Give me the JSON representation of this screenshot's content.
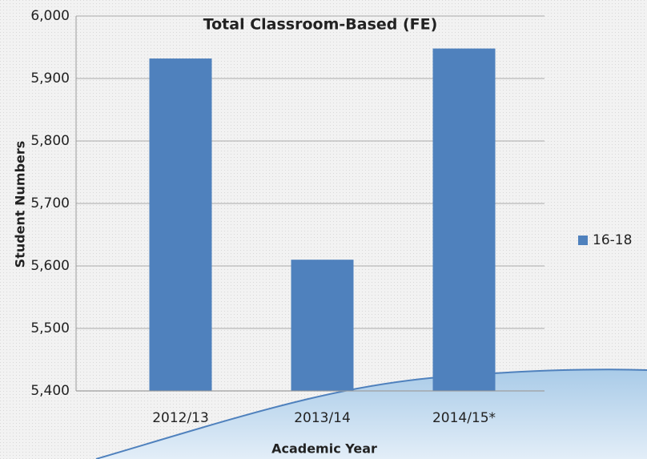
{
  "chart_data": {
    "type": "bar",
    "title": "Total Classroom-Based (FE)",
    "categories": [
      "2012/13",
      "2013/14",
      "2014/15*"
    ],
    "series": [
      {
        "name": "16-18",
        "color": "#4f81bd",
        "values": [
          5932,
          5610,
          5948
        ]
      }
    ],
    "xlabel": "Academic Year",
    "ylabel": "Student Numbers",
    "ylim": [
      5400,
      6000
    ],
    "yticks": [
      {
        "value": 5400,
        "label": "5,400"
      },
      {
        "value": 5500,
        "label": "5,500"
      },
      {
        "value": 5600,
        "label": "5,600"
      },
      {
        "value": 5700,
        "label": "5,700"
      },
      {
        "value": 5800,
        "label": "5,800"
      },
      {
        "value": 5900,
        "label": "5,900"
      },
      {
        "value": 6000,
        "label": "6,000"
      }
    ],
    "grid": true,
    "legend": "right"
  }
}
